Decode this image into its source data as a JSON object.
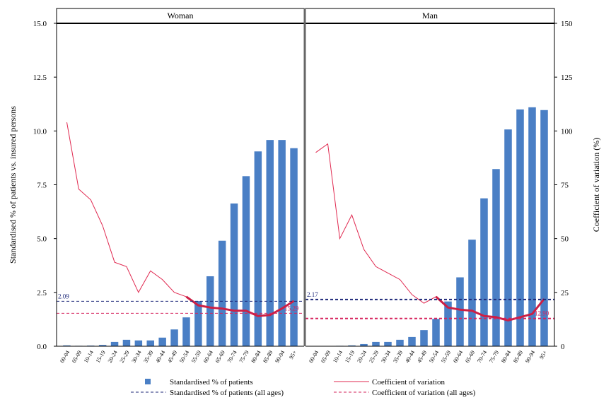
{
  "chart_data": {
    "type": "bar",
    "panels": [
      {
        "name": "Woman",
        "categories": [
          "00-04",
          "05-09",
          "10-14",
          "15-19",
          "20-24",
          "25-29",
          "30-34",
          "35-39",
          "40-44",
          "45-49",
          "50-54",
          "55-59",
          "60-64",
          "65-69",
          "70-74",
          "75-79",
          "80-84",
          "85-89",
          "90-94",
          "95+"
        ],
        "bars": [
          0.04,
          0.02,
          0.03,
          0.06,
          0.2,
          0.3,
          0.27,
          0.27,
          0.4,
          0.78,
          1.34,
          2.1,
          3.25,
          4.9,
          6.63,
          7.9,
          9.05,
          9.58,
          9.58,
          9.2
        ],
        "cv": [
          104,
          73,
          68,
          56,
          39,
          37,
          25,
          35,
          31,
          25,
          23,
          19,
          18,
          17.5,
          16.5,
          16.5,
          14,
          14.5,
          17.5,
          21
        ],
        "cv_bold_from_index": 10,
        "bar_all_ages": 2.09,
        "cv_all_ages": 15.29,
        "bar_all_ages_label": "2.09",
        "cv_all_ages_label": "15.29"
      },
      {
        "name": "Man",
        "categories": [
          "00-04",
          "05-09",
          "10-14",
          "15-19",
          "20-24",
          "25-29",
          "30-34",
          "35-39",
          "40-44",
          "45-49",
          "50-54",
          "55-59",
          "60-64",
          "65-69",
          "70-74",
          "75-79",
          "80-84",
          "85-89",
          "90-94",
          "95+"
        ],
        "bars": [
          0.01,
          0.01,
          0.02,
          0.04,
          0.1,
          0.2,
          0.2,
          0.3,
          0.43,
          0.75,
          1.27,
          2.08,
          3.2,
          4.95,
          6.87,
          8.23,
          10.07,
          11.0,
          11.1,
          10.97
        ],
        "cv": [
          90,
          94,
          50,
          61,
          45,
          37,
          34,
          31,
          24,
          20,
          23,
          18,
          17,
          16.5,
          14,
          13.5,
          12,
          13.5,
          15,
          22
        ],
        "cv_bold_from_index": 10,
        "bar_all_ages": 2.17,
        "cv_all_ages": 12.9,
        "bar_all_ages_label": "2.17",
        "cv_all_ages_label": "12.90"
      }
    ],
    "ylabel_left": "Standardised % of patients vs. insured persons",
    "ylabel_right": "Coefficient of variation (%)",
    "ylim_left": [
      0,
      15
    ],
    "ylim_right": [
      0,
      150
    ],
    "yticks_left": [
      "0.0",
      "2.5",
      "5.0",
      "7.5",
      "10.0",
      "12.5",
      "15.0"
    ],
    "yticks_right": [
      "0",
      "25",
      "50",
      "75",
      "100",
      "125",
      "150"
    ],
    "legend": [
      {
        "label": "Standardised % of patients",
        "style": "bar"
      },
      {
        "label": "Coefficient of variation",
        "style": "line"
      },
      {
        "label": "Standardised % of patients (all ages)",
        "style": "dashed-navy"
      },
      {
        "label": "Coefficient of variation (all ages)",
        "style": "dashed-red"
      }
    ],
    "legend_position": "bottom",
    "colors": {
      "bar": "#4a7fc5",
      "cv_line": "#e0284f",
      "cv_bold": "#cc1f45",
      "bar_ref": "#1f2a7a",
      "cv_ref": "#d6245e"
    }
  }
}
